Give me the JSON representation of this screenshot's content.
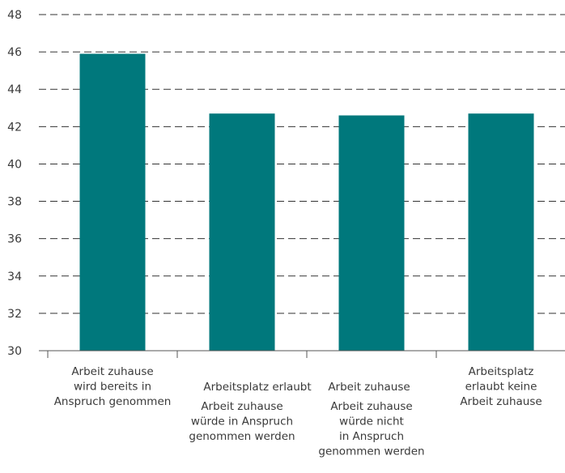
{
  "chart_data": {
    "type": "bar",
    "categories": [
      [
        "Arbeit zuhause",
        "wird bereits in",
        "Anspruch genommen"
      ],
      [
        "Arbeitsplatz erlaubt",
        "Arbeit zuhause",
        "würde in Anspruch",
        "genommen werden"
      ],
      [
        "Arbeit zuhause",
        "Arbeit zuhause",
        "würde nicht",
        "in Anspruch",
        "genommen werden"
      ],
      [
        "Arbeitsplatz",
        "erlaubt keine",
        "Arbeit zuhause"
      ]
    ],
    "values": [
      45.9,
      42.7,
      42.6,
      42.7
    ],
    "ylim": [
      30,
      48
    ],
    "yticks": [
      30,
      32,
      34,
      36,
      38,
      40,
      42,
      44,
      46,
      48
    ],
    "grid": true,
    "colors": {
      "bar": "#00787c",
      "grid": "#333333",
      "axis": "#555555"
    }
  }
}
